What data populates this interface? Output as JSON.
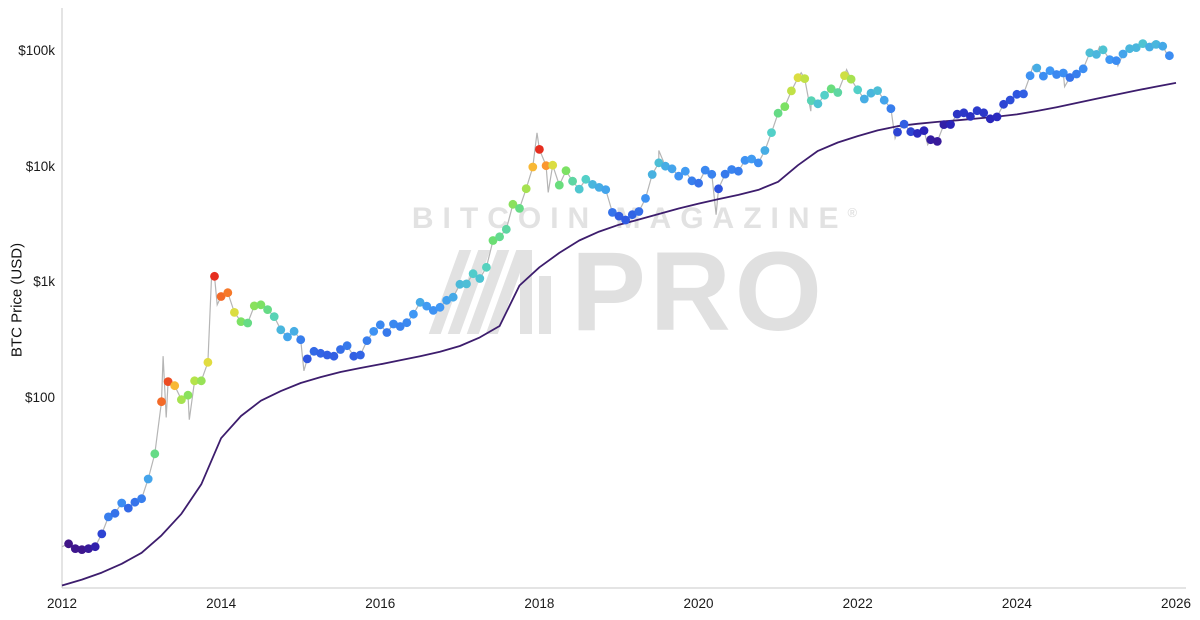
{
  "watermark": {
    "line1": "BITCOIN MAGAZINE",
    "registered": "®",
    "pro": "PRO"
  },
  "chart_data": {
    "type": "scatter+line",
    "title": "",
    "xlabel": "",
    "ylabel": "BTC Price (USD)",
    "y_scale": "log",
    "x_range": [
      2012,
      2026
    ],
    "grid": false,
    "legend": false,
    "x_ticks": [
      "2012",
      "2014",
      "2016",
      "2018",
      "2020",
      "2022",
      "2024",
      "2026"
    ],
    "y_ticks": [
      {
        "label": "$100k",
        "value": 100000
      },
      {
        "label": "$10k",
        "value": 10000
      },
      {
        "label": "$1k",
        "value": 1000
      },
      {
        "label": "$100",
        "value": 100
      }
    ],
    "colors": {
      "price_line": "#b5b5b5",
      "wma_line": "#3d1d6d",
      "axis": "#c9c9c9",
      "tick_text": "#1a1a1a",
      "watermark": "#e2e2e2"
    },
    "colormap": {
      "stops": [
        [
          0.0,
          "#46117b"
        ],
        [
          0.1,
          "#2a23b8"
        ],
        [
          0.22,
          "#2e55e0"
        ],
        [
          0.35,
          "#3f97f5"
        ],
        [
          0.48,
          "#53d0c8"
        ],
        [
          0.58,
          "#6ee06a"
        ],
        [
          0.68,
          "#b4e34a"
        ],
        [
          0.78,
          "#f5d93b"
        ],
        [
          0.87,
          "#fb8f2d"
        ],
        [
          1.0,
          "#e62e1f"
        ]
      ]
    },
    "series": [
      {
        "name": "BTC monthly price (dots colored by 200WMA heat)",
        "type": "scatter",
        "start_year": 2012,
        "cadence": "monthly",
        "dot_radius": 4.4,
        "prices": [
          5.5,
          5.0,
          4.9,
          5.0,
          5.2,
          6.7,
          9.4,
          10.1,
          12.4,
          11.2,
          12.6,
          13.5,
          20,
          33,
          93,
          139,
          128,
          97,
          106,
          141,
          141,
          204,
          1130,
          755,
          815,
          550,
          458,
          446,
          627,
          640,
          582,
          506,
          389,
          338,
          378,
          320,
          218,
          254,
          244,
          236,
          230,
          263,
          284,
          230,
          236,
          314,
          377,
          430,
          369,
          437,
          416,
          448,
          531,
          673,
          624,
          573,
          609,
          700,
          745,
          963,
          970,
          1190,
          1080,
          1350,
          2300,
          2480,
          2875,
          4735,
          4360,
          6450,
          9950,
          14100,
          10200,
          10300,
          6930,
          9240,
          7500,
          6400,
          7780,
          7030,
          6630,
          6340,
          4030,
          3740,
          3460,
          3850,
          4100,
          5320,
          8560,
          10800,
          10100,
          9600,
          8300,
          9150,
          7550,
          7200,
          9350,
          8600,
          6440,
          8630,
          9450,
          9140,
          11350,
          11650,
          10780,
          13800,
          19700,
          29000,
          33100,
          45200,
          58800,
          57750,
          37300,
          35000,
          41500,
          47100,
          43800,
          61300,
          57000,
          46200,
          38500,
          43200,
          45500,
          37600,
          31800,
          19900,
          23300,
          20050,
          19400,
          20500,
          17100,
          16550,
          23100,
          23150,
          28500,
          29250,
          27200,
          30480,
          29230,
          25930,
          26960,
          34650,
          37700,
          42250,
          42580,
          61200,
          71330,
          60640,
          67500,
          62700,
          64600,
          58970,
          63330,
          70200,
          96400,
          93430,
          102400,
          84350,
          82550,
          94200,
          104600,
          107100,
          115800,
          108200,
          114000,
          110000,
          91000
        ],
        "temps": [
          0.02,
          0.03,
          0.03,
          0.05,
          0.08,
          0.18,
          0.3,
          0.28,
          0.33,
          0.26,
          0.28,
          0.3,
          0.38,
          0.55,
          0.92,
          0.96,
          0.82,
          0.66,
          0.62,
          0.68,
          0.64,
          0.75,
          1.0,
          0.92,
          0.9,
          0.74,
          0.6,
          0.55,
          0.62,
          0.6,
          0.55,
          0.5,
          0.42,
          0.38,
          0.4,
          0.3,
          0.22,
          0.26,
          0.25,
          0.24,
          0.24,
          0.27,
          0.29,
          0.24,
          0.25,
          0.3,
          0.34,
          0.32,
          0.29,
          0.32,
          0.31,
          0.32,
          0.35,
          0.39,
          0.36,
          0.34,
          0.35,
          0.37,
          0.39,
          0.43,
          0.44,
          0.47,
          0.45,
          0.49,
          0.57,
          0.54,
          0.52,
          0.62,
          0.55,
          0.66,
          0.82,
          1.0,
          0.86,
          0.74,
          0.56,
          0.6,
          0.52,
          0.46,
          0.48,
          0.42,
          0.4,
          0.38,
          0.28,
          0.24,
          0.23,
          0.25,
          0.27,
          0.34,
          0.41,
          0.44,
          0.4,
          0.38,
          0.34,
          0.36,
          0.3,
          0.28,
          0.32,
          0.31,
          0.22,
          0.29,
          0.31,
          0.3,
          0.34,
          0.36,
          0.33,
          0.4,
          0.48,
          0.55,
          0.6,
          0.7,
          0.74,
          0.7,
          0.5,
          0.45,
          0.48,
          0.56,
          0.52,
          0.72,
          0.66,
          0.48,
          0.4,
          0.42,
          0.44,
          0.38,
          0.3,
          0.18,
          0.24,
          0.18,
          0.12,
          0.1,
          0.06,
          0.05,
          0.07,
          0.1,
          0.14,
          0.15,
          0.13,
          0.16,
          0.15,
          0.11,
          0.12,
          0.18,
          0.2,
          0.22,
          0.24,
          0.34,
          0.4,
          0.33,
          0.35,
          0.32,
          0.33,
          0.28,
          0.3,
          0.33,
          0.44,
          0.42,
          0.45,
          0.35,
          0.33,
          0.38,
          0.42,
          0.42,
          0.45,
          0.4,
          0.42,
          0.39,
          0.33
        ]
      },
      {
        "name": "BTC price (daily, gray)",
        "type": "line",
        "extra_points": [
          [
            2012.0,
            5.2
          ],
          [
            2013.27,
            230
          ],
          [
            2013.31,
            68
          ],
          [
            2013.6,
            65
          ],
          [
            2013.88,
            1150
          ],
          [
            2013.95,
            640
          ],
          [
            2015.04,
            172
          ],
          [
            2017.97,
            19650
          ],
          [
            2018.11,
            6000
          ],
          [
            2019.5,
            13800
          ],
          [
            2020.22,
            3850
          ],
          [
            2021.29,
            64800
          ],
          [
            2021.41,
            30200
          ],
          [
            2021.86,
            69000
          ],
          [
            2022.47,
            17600
          ],
          [
            2022.88,
            15500
          ],
          [
            2024.2,
            73700
          ],
          [
            2024.6,
            49100
          ],
          [
            2025.04,
            109300
          ],
          [
            2025.27,
            74500
          ],
          [
            2025.7,
            118000
          ],
          [
            2025.88,
            96000
          ]
        ]
      },
      {
        "name": "200-week moving average (purple)",
        "type": "line",
        "points": [
          [
            2012.0,
            2.4
          ],
          [
            2012.25,
            2.7
          ],
          [
            2012.5,
            3.1
          ],
          [
            2012.75,
            3.7
          ],
          [
            2013.0,
            4.6
          ],
          [
            2013.25,
            6.5
          ],
          [
            2013.5,
            10
          ],
          [
            2013.75,
            18
          ],
          [
            2014.0,
            45
          ],
          [
            2014.25,
            70
          ],
          [
            2014.5,
            95
          ],
          [
            2014.75,
            115
          ],
          [
            2015.0,
            135
          ],
          [
            2015.25,
            152
          ],
          [
            2015.5,
            168
          ],
          [
            2015.75,
            182
          ],
          [
            2016.0,
            196
          ],
          [
            2016.25,
            212
          ],
          [
            2016.5,
            230
          ],
          [
            2016.75,
            252
          ],
          [
            2017.0,
            282
          ],
          [
            2017.25,
            335
          ],
          [
            2017.5,
            420
          ],
          [
            2017.75,
            940
          ],
          [
            2018.0,
            1350
          ],
          [
            2018.25,
            1800
          ],
          [
            2018.5,
            2300
          ],
          [
            2018.75,
            2750
          ],
          [
            2019.0,
            3150
          ],
          [
            2019.25,
            3500
          ],
          [
            2019.5,
            3900
          ],
          [
            2019.75,
            4350
          ],
          [
            2020.0,
            4800
          ],
          [
            2020.25,
            5250
          ],
          [
            2020.5,
            5700
          ],
          [
            2020.75,
            6300
          ],
          [
            2021.0,
            7400
          ],
          [
            2021.25,
            10300
          ],
          [
            2021.5,
            13700
          ],
          [
            2021.75,
            16200
          ],
          [
            2022.0,
            18400
          ],
          [
            2022.25,
            20600
          ],
          [
            2022.5,
            22400
          ],
          [
            2022.75,
            23500
          ],
          [
            2023.0,
            24400
          ],
          [
            2023.25,
            25200
          ],
          [
            2023.5,
            26100
          ],
          [
            2023.75,
            27100
          ],
          [
            2024.0,
            28300
          ],
          [
            2024.25,
            30300
          ],
          [
            2024.5,
            32700
          ],
          [
            2024.75,
            35500
          ],
          [
            2025.0,
            38600
          ],
          [
            2025.25,
            42000
          ],
          [
            2025.5,
            45600
          ],
          [
            2025.75,
            49200
          ],
          [
            2026.0,
            53000
          ]
        ]
      }
    ]
  }
}
